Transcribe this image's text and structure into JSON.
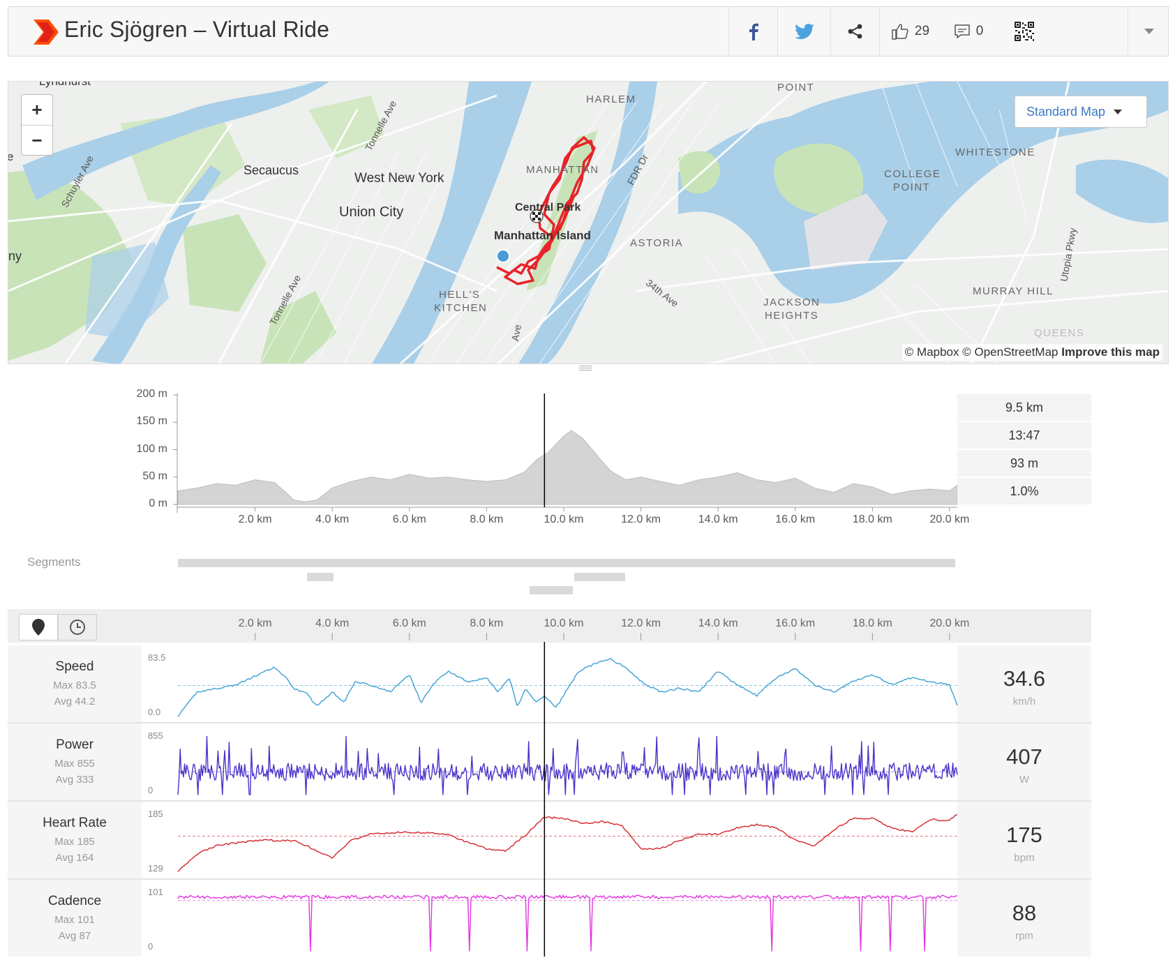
{
  "header": {
    "title": "Eric Sjögren – Virtual Ride",
    "kudos_count": "29",
    "comment_count": "0"
  },
  "map": {
    "zoom_in": "+",
    "zoom_out": "−",
    "map_type": "Standard Map",
    "attribution": "© Mapbox © OpenStreetMap",
    "improve": "Improve this map",
    "labels": {
      "lyndhurst": "Lyndhurst",
      "secaucus": "Secaucus",
      "west_new_york": "West New York",
      "union_city": "Union City",
      "harlem": "HARLEM",
      "manhattan": "MANHATTAN",
      "central_park": "Central Park",
      "manhattan_island": "Manhattan Island",
      "hells_kitchen_1": "HELL'S",
      "hells_kitchen_2": "KITCHEN",
      "astoria": "ASTORIA",
      "college_point_1": "COLLEGE",
      "college_point_2": "POINT",
      "whitestone": "WHITESTONE",
      "point": "POINT",
      "jackson_1": "JACKSON",
      "jackson_2": "HEIGHTS",
      "murray_hill": "MURRAY HILL",
      "queens": "QUEENS",
      "schuyler": "Schuyler Ave",
      "tonnelle1": "Tonnelle Ave",
      "tonnelle2": "Tonnelle Ave",
      "fdr": "FDR Dr",
      "st34": "34th Ave",
      "utopia": "Utopia Pkwy",
      "ave": "Ave",
      "ny": "ny",
      "e": "e"
    }
  },
  "elevation": {
    "y_ticks": [
      "200 m",
      "150 m",
      "100 m",
      "50 m",
      "0 m"
    ],
    "x_ticks": [
      "2.0 km",
      "4.0 km",
      "6.0 km",
      "8.0 km",
      "10.0 km",
      "12.0 km",
      "14.0 km",
      "16.0 km",
      "18.0 km",
      "20.0 km"
    ],
    "stats": [
      "9.5 km",
      "13:47",
      "93 m",
      "1.0%"
    ]
  },
  "segments": {
    "label": "Segments"
  },
  "chart_data": [
    {
      "type": "area",
      "x_unit": "km",
      "xlim": [
        0,
        20.2
      ],
      "ylim": [
        0,
        200
      ],
      "x": [
        0,
        0.5,
        1,
        1.5,
        2,
        2.5,
        2.8,
        3.0,
        3.3,
        3.6,
        4.0,
        4.5,
        5,
        5.5,
        6,
        6.5,
        7,
        7.5,
        8,
        8.5,
        9,
        9.3,
        9.6,
        9.8,
        10.0,
        10.2,
        10.5,
        10.8,
        11.2,
        11.6,
        12,
        12.5,
        13,
        13.5,
        14,
        14.5,
        15,
        15.5,
        16,
        16.5,
        17,
        17.5,
        18,
        18.5,
        19,
        19.5,
        20,
        20.2
      ],
      "y": [
        25,
        30,
        38,
        35,
        45,
        40,
        22,
        8,
        5,
        8,
        30,
        42,
        50,
        45,
        55,
        48,
        50,
        45,
        42,
        45,
        60,
        82,
        95,
        110,
        125,
        135,
        120,
        95,
        62,
        45,
        50,
        42,
        35,
        45,
        50,
        58,
        45,
        40,
        48,
        30,
        22,
        38,
        32,
        18,
        25,
        28,
        25,
        35
      ],
      "cursor_x": 9.5
    },
    {
      "type": "line",
      "name": "Speed",
      "unit": "km/h",
      "ylim": [
        0,
        83.5
      ],
      "max": "83.5",
      "avg": "44.2",
      "x": [
        0,
        0.5,
        1.5,
        2.5,
        2.8,
        3.0,
        3.3,
        3.6,
        4.0,
        4.3,
        4.6,
        5,
        5.5,
        6,
        6.3,
        6.6,
        7,
        7.5,
        8,
        8.3,
        8.6,
        8.8,
        9.0,
        9.3,
        9.5,
        9.8,
        10.1,
        10.4,
        10.8,
        11.2,
        11.6,
        12,
        12.5,
        13,
        13.5,
        14,
        14.5,
        15,
        15.5,
        16,
        16.5,
        17,
        17.5,
        18,
        18.5,
        19,
        19.5,
        20,
        20.2
      ],
      "y": [
        0,
        35,
        45,
        70,
        55,
        40,
        35,
        15,
        35,
        20,
        50,
        45,
        35,
        60,
        20,
        45,
        65,
        50,
        55,
        35,
        55,
        12,
        40,
        20,
        30,
        12,
        40,
        65,
        75,
        82,
        70,
        50,
        35,
        40,
        35,
        65,
        45,
        30,
        55,
        68,
        45,
        35,
        50,
        60,
        45,
        55,
        50,
        45,
        15
      ],
      "current": "34.6"
    },
    {
      "type": "line",
      "name": "Power",
      "unit": "W",
      "ylim": [
        0,
        855
      ],
      "max": "855",
      "avg": "333",
      "current": "407"
    },
    {
      "type": "line",
      "name": "Heart Rate",
      "unit": "bpm",
      "ylim": [
        129,
        185
      ],
      "max": "185",
      "avg": "164",
      "x": [
        0,
        0.5,
        1,
        2,
        3,
        3.5,
        4.0,
        4.5,
        5,
        6,
        7,
        7.5,
        8,
        8.5,
        9,
        9.5,
        10,
        10.5,
        11,
        11.5,
        12,
        12.5,
        13,
        13.5,
        14,
        14.5,
        15,
        15.5,
        16,
        16.5,
        17,
        17.5,
        18,
        18.5,
        19,
        19.5,
        20,
        20.2
      ],
      "y": [
        131,
        147,
        155,
        160,
        160,
        152,
        143,
        160,
        166,
        168,
        166,
        158,
        152,
        150,
        165,
        182,
        181,
        176,
        178,
        174,
        152,
        152,
        160,
        166,
        166,
        172,
        175,
        172,
        160,
        155,
        170,
        181,
        181,
        172,
        168,
        180,
        179,
        185
      ],
      "current": "175"
    },
    {
      "type": "line",
      "name": "Cadence",
      "unit": "rpm",
      "ylim": [
        0,
        101
      ],
      "max": "101",
      "avg": "87",
      "current": "88"
    }
  ],
  "streams": [
    {
      "name": "Speed",
      "max": "Max 83.5",
      "avg": "Avg 44.2",
      "top": "83.5",
      "bottom": "0.0",
      "value": "34.6",
      "unit": "km/h",
      "color": "#3d9fd6"
    },
    {
      "name": "Power",
      "max": "Max 855",
      "avg": "Avg 333",
      "top": "855",
      "bottom": "0",
      "value": "407",
      "unit": "W",
      "color": "#4a32c8"
    },
    {
      "name": "Heart Rate",
      "max": "Max 185",
      "avg": "Avg 164",
      "top": "185",
      "bottom": "129",
      "value": "175",
      "unit": "bpm",
      "color": "#d4242a"
    },
    {
      "name": "Cadence",
      "max": "Max 101",
      "avg": "Avg 87",
      "top": "101",
      "bottom": "0",
      "value": "88",
      "unit": "rpm",
      "color": "#e233e0"
    }
  ],
  "colors": {
    "route": "#e8232a",
    "water": "#a9cfe9",
    "park": "#c9e3b8",
    "accent": "#fc4c02"
  },
  "icons": [
    "facebook-icon",
    "twitter-icon",
    "share-icon",
    "thumbs-up-icon",
    "comment-icon",
    "qr-code-icon",
    "chevron-down-icon",
    "location-pin-icon",
    "clock-icon"
  ]
}
